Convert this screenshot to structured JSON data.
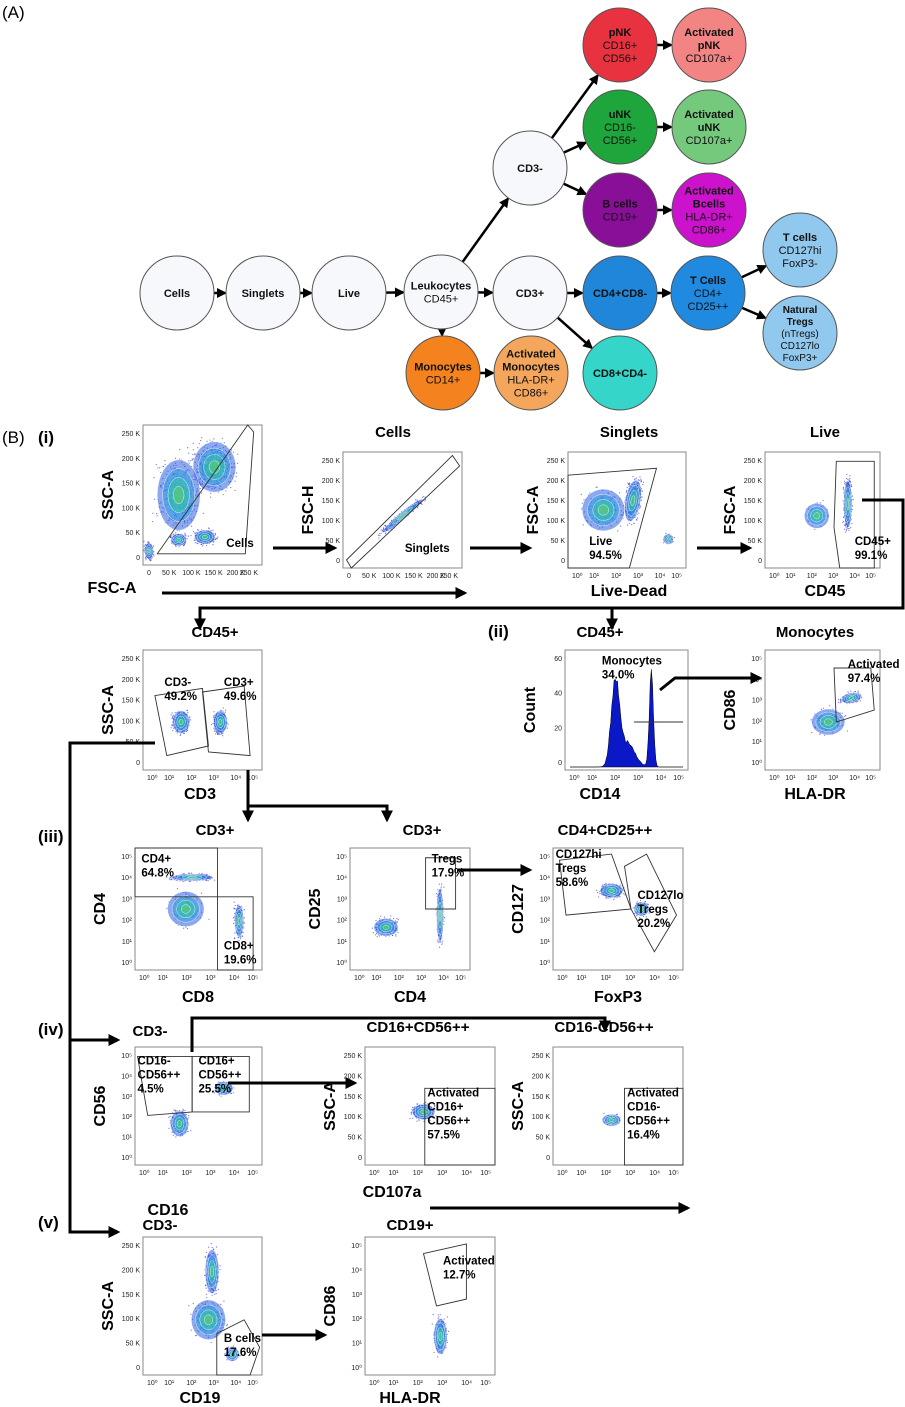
{
  "figure_labels": {
    "A": "(A)",
    "B": "(B)",
    "i": "(i)",
    "ii": "(ii)",
    "iii": "(iii)",
    "iv": "(iv)",
    "v": "(v)"
  },
  "diagram": {
    "nodes": [
      {
        "id": "cells",
        "lines": [
          "Cells"
        ],
        "color": "#f7f8fc"
      },
      {
        "id": "singlets",
        "lines": [
          "Singlets"
        ],
        "color": "#f7f8fc"
      },
      {
        "id": "live",
        "lines": [
          "Live"
        ],
        "color": "#f7f8fc"
      },
      {
        "id": "leukocytes",
        "lines": [
          "Leukocytes",
          "CD45+"
        ],
        "color": "#f7f8fc"
      },
      {
        "id": "cd3pos",
        "lines": [
          "CD3+"
        ],
        "color": "#f7f8fc"
      },
      {
        "id": "cd3neg",
        "lines": [
          "CD3-"
        ],
        "color": "#f7f8fc"
      },
      {
        "id": "pnk",
        "lines": [
          "pNK",
          "CD16+",
          "CD56+"
        ],
        "color": "#e8323f"
      },
      {
        "id": "act-pnk",
        "lines": [
          "Activated",
          "pNK",
          "CD107a+"
        ],
        "color": "#f28484"
      },
      {
        "id": "unk",
        "lines": [
          "uNK",
          "CD16-",
          "CD56+"
        ],
        "color": "#1ea53c"
      },
      {
        "id": "act-unk",
        "lines": [
          "Activated",
          "uNK",
          "CD107a+"
        ],
        "color": "#74c97c"
      },
      {
        "id": "bcells",
        "lines": [
          "B cells",
          "CD19+"
        ],
        "color": "#8a0f98"
      },
      {
        "id": "act-bcells",
        "lines": [
          "Activated",
          "Bcells",
          "HLA-DR+",
          "CD86+"
        ],
        "color": "#cc12cc"
      },
      {
        "id": "cd4cd8",
        "lines": [
          "CD4+CD8-"
        ],
        "color": "#1f86d9"
      },
      {
        "id": "tcells",
        "lines": [
          "T Cells",
          "CD4+",
          "CD25++"
        ],
        "color": "#1f8ae0"
      },
      {
        "id": "tcells-hi",
        "lines": [
          "T cells",
          "CD127hi",
          "FoxP3-"
        ],
        "color": "#90c8ee"
      },
      {
        "id": "ntregs",
        "lines": [
          "Natural",
          "Tregs",
          "(nTregs)",
          "CD127lo",
          "FoxP3+"
        ],
        "color": "#90c8ee"
      },
      {
        "id": "monocytes",
        "lines": [
          "Monocytes",
          "CD14+"
        ],
        "color": "#f4821f"
      },
      {
        "id": "act-monocytes",
        "lines": [
          "Activated",
          "Monocytes",
          "HLA-DR+",
          "CD86+"
        ],
        "color": "#f3a65c"
      },
      {
        "id": "cd8cd4",
        "lines": [
          "CD8+CD4-"
        ],
        "color": "#35d6c9"
      }
    ]
  },
  "plots": [
    {
      "title": "",
      "ylabel": "SSC-A",
      "xlabel": "FSC-A",
      "xticks": [
        "0",
        "50 K",
        "100 K",
        "150 K",
        "200 K",
        "250 K"
      ],
      "yticks": [
        "0",
        "50 K",
        "100 K",
        "150 K",
        "200 K",
        "250 K"
      ],
      "gates": [
        [
          "Cells"
        ]
      ]
    },
    {
      "title": "Cells",
      "ylabel": "FSC-H",
      "xlabel": "",
      "xticks": [
        "0",
        "50 K",
        "100 K",
        "150 K",
        "200 K",
        "250 K"
      ],
      "yticks": [
        "0",
        "50 K",
        "100 K",
        "150 K",
        "200 K",
        "250 K"
      ],
      "gates": [
        [
          "Singlets"
        ]
      ]
    },
    {
      "title": "Singlets",
      "ylabel": "FSC-A",
      "xlabel": "Live-Dead",
      "xticks": [
        "10⁰",
        "10¹",
        "10²",
        "10³",
        "10⁴",
        "10⁵"
      ],
      "yticks": [
        "0",
        "50 K",
        "100 K",
        "150 K",
        "200 K",
        "250 K"
      ],
      "gates": [
        [
          "Live",
          "94.5%"
        ]
      ]
    },
    {
      "title": "Live",
      "ylabel": "FSC-A",
      "xlabel": "CD45",
      "xticks": [
        "10⁰",
        "10¹",
        "10²",
        "10³",
        "10⁴",
        "10⁵"
      ],
      "yticks": [
        "0",
        "50 K",
        "100 K",
        "150 K",
        "200 K",
        "250 K"
      ],
      "gates": [
        [
          "CD45+",
          "99.1%"
        ]
      ]
    },
    {
      "title": "CD45+",
      "ylabel": "SSC-A",
      "xlabel": "CD3",
      "xticks": [
        "10⁰",
        "10¹",
        "10²",
        "10³",
        "10⁴",
        "10⁵"
      ],
      "yticks": [
        "0",
        "50 K",
        "100 K",
        "150 K",
        "200 K",
        "250 K"
      ],
      "gates": [
        [
          "CD3-",
          "49.2%"
        ],
        [
          "CD3+",
          "49.6%"
        ]
      ]
    },
    {
      "title": "CD45+",
      "ylabel": "Count",
      "xlabel": "CD14",
      "xticks": [
        "10⁰",
        "10¹",
        "10²",
        "10³",
        "10⁴",
        "10⁵"
      ],
      "yticks": [
        "0",
        "20",
        "40",
        "60"
      ],
      "gates": [
        [
          "Monocytes",
          "34.0%"
        ]
      ]
    },
    {
      "title": "Monocytes",
      "ylabel": "CD86",
      "xlabel": "HLA-DR",
      "xticks": [
        "10⁰",
        "10¹",
        "10²",
        "10³",
        "10⁴",
        "10⁵"
      ],
      "yticks": [
        "10⁰",
        "10¹",
        "10²",
        "10³",
        "10⁴",
        "10⁵"
      ],
      "gates": [
        [
          "Activated",
          "97.4%"
        ]
      ]
    },
    {
      "title": "CD3+",
      "ylabel": "CD4",
      "xlabel": "CD8",
      "xticks": [
        "10⁰",
        "10¹",
        "10²",
        "10³",
        "10⁴",
        "10⁵"
      ],
      "yticks": [
        "10⁰",
        "10¹",
        "10²",
        "10³",
        "10⁴",
        "10⁵"
      ],
      "gates": [
        [
          "CD4+",
          "64.8%"
        ],
        [
          "CD8+",
          "19.6%"
        ]
      ]
    },
    {
      "title": "CD3+",
      "ylabel": "CD25",
      "xlabel": "CD4",
      "xticks": [
        "10⁰",
        "10¹",
        "10²",
        "10³",
        "10⁴",
        "10⁵"
      ],
      "yticks": [
        "10⁰",
        "10¹",
        "10²",
        "10³",
        "10⁴",
        "10⁵"
      ],
      "gates": [
        [
          "Tregs",
          "17.9%"
        ]
      ]
    },
    {
      "title": "CD4+CD25++",
      "ylabel": "CD127",
      "xlabel": "FoxP3",
      "xticks": [
        "10⁰",
        "10¹",
        "10²",
        "10³",
        "10⁴",
        "10⁵"
      ],
      "yticks": [
        "10⁰",
        "10¹",
        "10²",
        "10³",
        "10⁴",
        "10⁵"
      ],
      "gates": [
        [
          "CD127hi",
          "Tregs",
          "58.6%"
        ],
        [
          "CD127lo",
          "Tregs",
          "20.2%"
        ]
      ]
    },
    {
      "title": "CD3-",
      "ylabel": "CD56",
      "xlabel": "CD16",
      "xticks": [
        "10⁰",
        "10¹",
        "10²",
        "10³",
        "10⁴",
        "10⁵"
      ],
      "yticks": [
        "10⁰",
        "10¹",
        "10²",
        "10³",
        "10⁴",
        "10⁵"
      ],
      "gates": [
        [
          "CD16-",
          "CD56++",
          "4.5%"
        ],
        [
          "CD16+",
          "CD56++",
          "25.5%"
        ]
      ]
    },
    {
      "title": "CD16+CD56++",
      "ylabel": "SSC-A",
      "xlabel": "CD107a",
      "xticks": [
        "10⁰",
        "10¹",
        "10²",
        "10³",
        "10⁴",
        "10⁵"
      ],
      "yticks": [
        "0",
        "50 K",
        "100 K",
        "150 K",
        "200 K",
        "250 K"
      ],
      "gates": [
        [
          "Activated",
          "CD16+",
          "CD56++",
          "57.5%"
        ]
      ]
    },
    {
      "title": "CD16-CD56++",
      "ylabel": "SSC-A",
      "xlabel": "",
      "xticks": [
        "10⁰",
        "10¹",
        "10²",
        "10³",
        "10⁴",
        "10⁵"
      ],
      "yticks": [
        "0",
        "50 K",
        "100 K",
        "150 K",
        "200 K",
        "250 K"
      ],
      "gates": [
        [
          "Activated",
          "CD16-",
          "CD56++",
          "16.4%"
        ]
      ]
    },
    {
      "title": "CD3-",
      "ylabel": "SSC-A",
      "xlabel": "CD19",
      "xticks": [
        "10⁰",
        "10¹",
        "10²",
        "10³",
        "10⁴",
        "10⁵"
      ],
      "yticks": [
        "0",
        "50 K",
        "100 K",
        "150 K",
        "200 K",
        "250 K"
      ],
      "gates": [
        [
          "B cells",
          "17.6%"
        ]
      ]
    },
    {
      "title": "CD19+",
      "ylabel": "CD86",
      "xlabel": "HLA-DR",
      "xticks": [
        "10⁰",
        "10¹",
        "10²",
        "10³",
        "10⁴",
        "10⁵"
      ],
      "yticks": [
        "10⁰",
        "10¹",
        "10²",
        "10³",
        "10⁴",
        "10⁵"
      ],
      "gates": [
        [
          "Activated",
          "12.7%"
        ]
      ]
    }
  ]
}
